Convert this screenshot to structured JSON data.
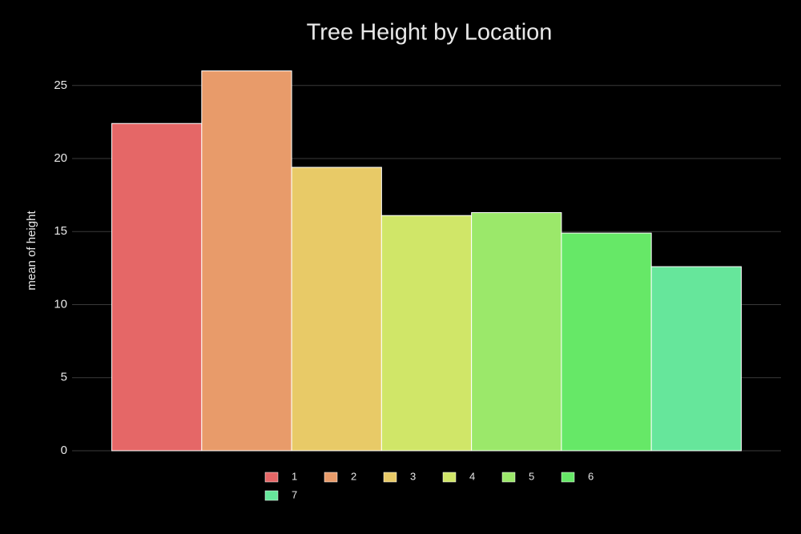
{
  "chart_data": {
    "type": "bar",
    "title": "Tree Height by Location",
    "ylabel": "mean of height",
    "categories": [
      null
    ],
    "series": [
      {
        "name": "1",
        "color": "#e56767",
        "values": [
          22.4
        ]
      },
      {
        "name": "2",
        "color": "#e89b6a",
        "values": [
          26.0
        ]
      },
      {
        "name": "3",
        "color": "#e8ca67",
        "values": [
          19.4
        ]
      },
      {
        "name": "4",
        "color": "#d0e668",
        "values": [
          16.1
        ]
      },
      {
        "name": "5",
        "color": "#9be86a",
        "values": [
          16.3
        ]
      },
      {
        "name": "6",
        "color": "#66e867",
        "values": [
          14.9
        ]
      },
      {
        "name": "7",
        "color": "#66e69b",
        "values": [
          12.6
        ]
      }
    ],
    "ylim": [
      0,
      27.4
    ],
    "yticks": [
      0,
      5,
      10,
      15,
      20,
      25
    ],
    "grid": true
  }
}
